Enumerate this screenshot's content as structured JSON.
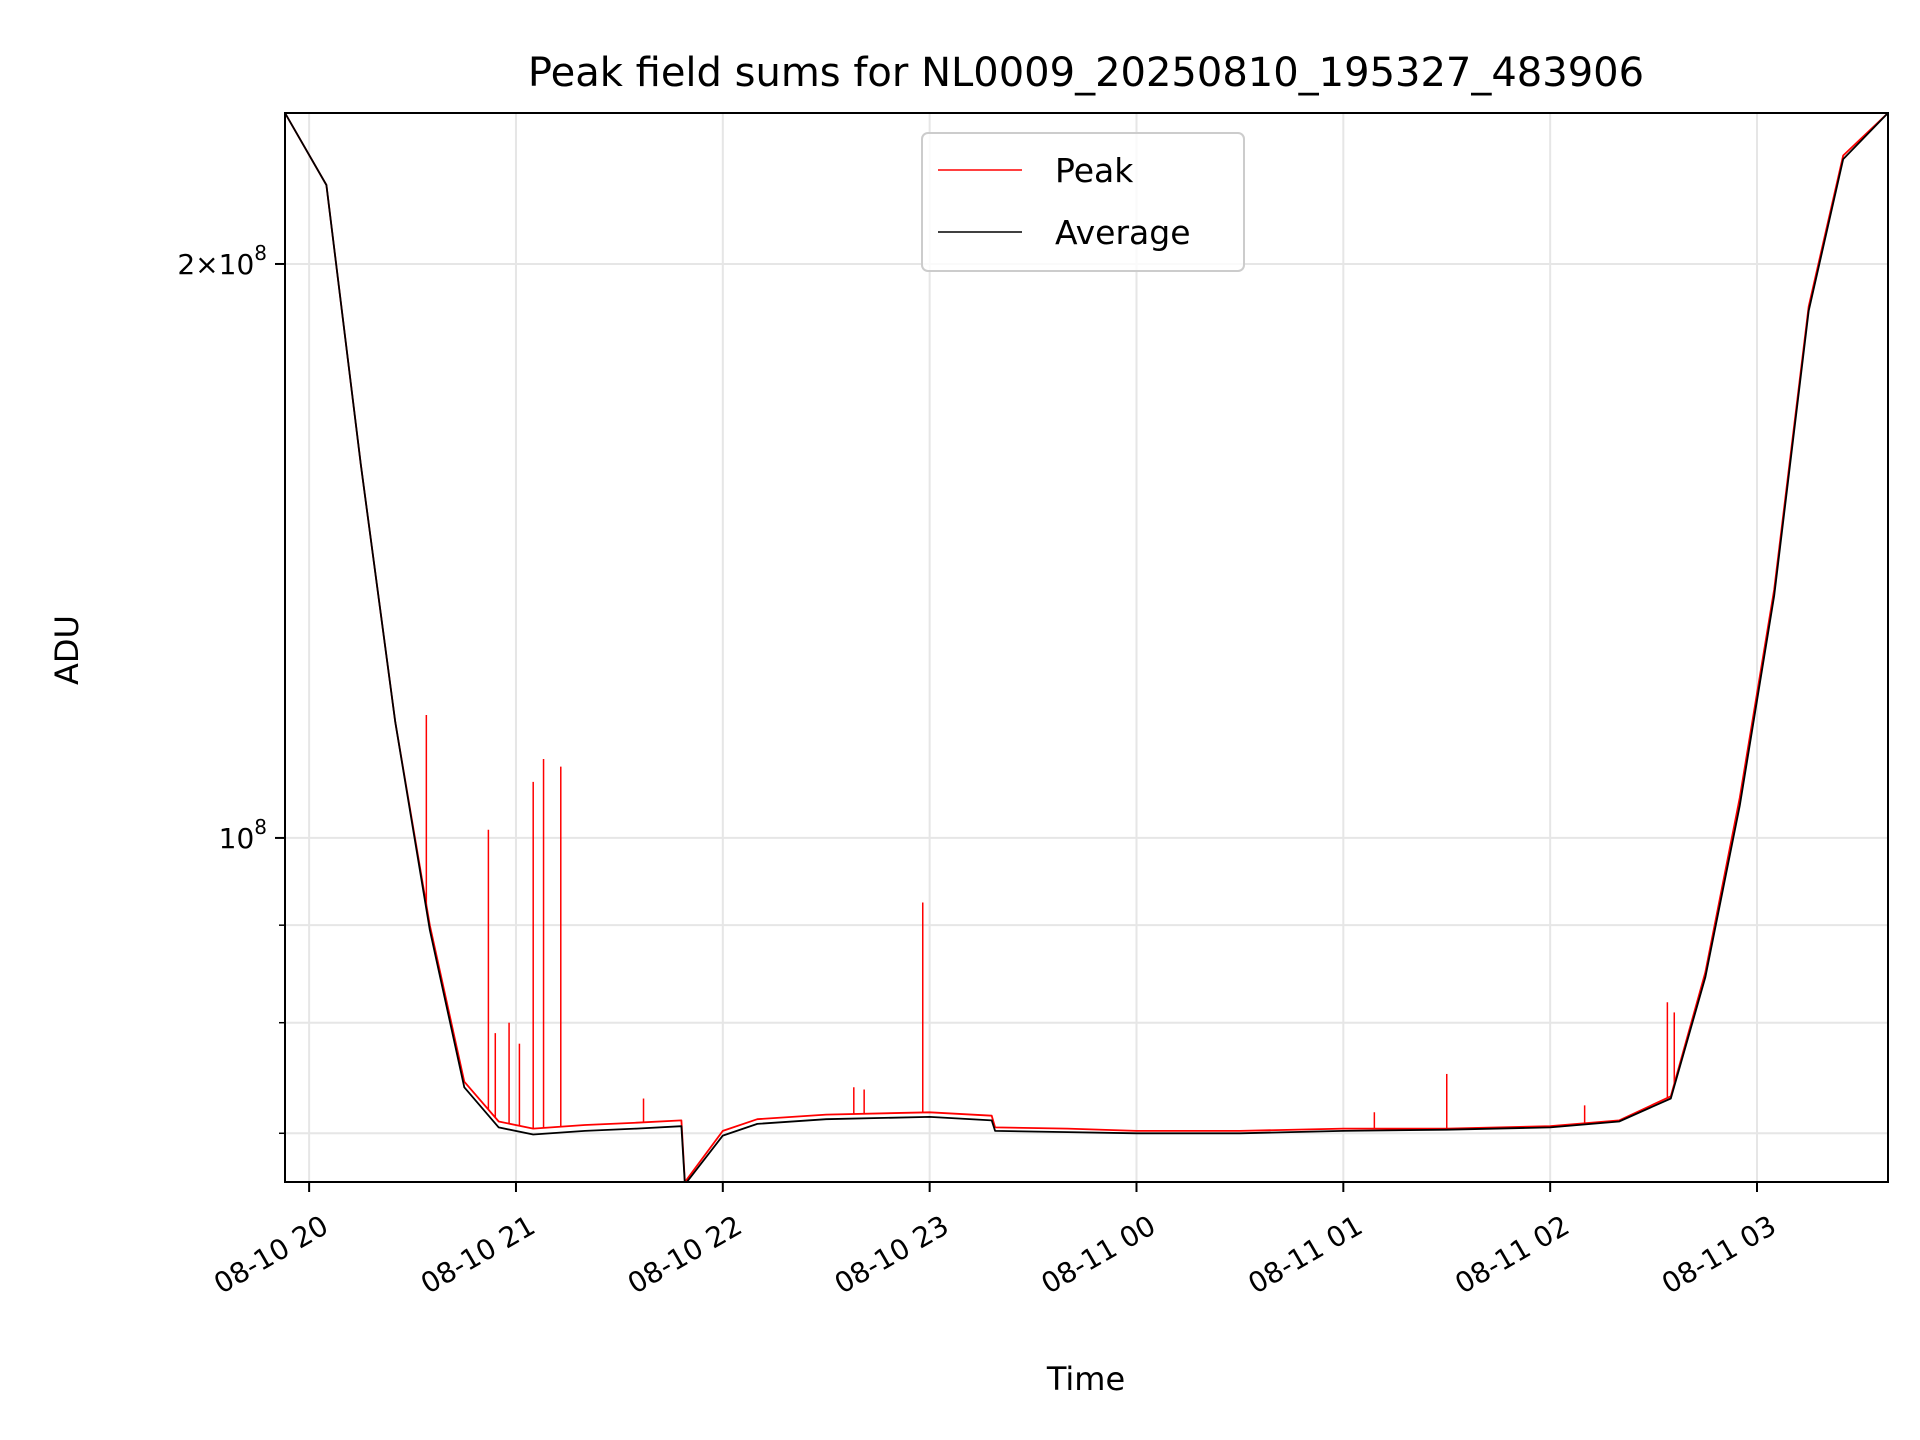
{
  "chart_data": {
    "type": "line",
    "title": "Peak field sums for NL0009_20250810_195327_483906",
    "xlabel": "Time",
    "ylabel": "ADU",
    "yscale": "log",
    "grid": true,
    "legend_position": "upper center",
    "x_ticks": [
      {
        "t": "2025-08-10T20:00",
        "label": "08-10 20"
      },
      {
        "t": "2025-08-10T21:00",
        "label": "08-10 21"
      },
      {
        "t": "2025-08-10T22:00",
        "label": "08-10 22"
      },
      {
        "t": "2025-08-10T23:00",
        "label": "08-10 23"
      },
      {
        "t": "2025-08-11T00:00",
        "label": "08-11 00"
      },
      {
        "t": "2025-08-11T01:00",
        "label": "08-11 01"
      },
      {
        "t": "2025-08-11T02:00",
        "label": "08-11 02"
      },
      {
        "t": "2025-08-11T03:00",
        "label": "08-11 03"
      }
    ],
    "y_ticks": [
      {
        "value": 100000000,
        "label_base": "10",
        "label_exp": "8",
        "label_prefix": ""
      },
      {
        "value": 200000000,
        "label_base": "10",
        "label_exp": "8",
        "label_prefix": "2×"
      }
    ],
    "xlim": [
      "2025-08-10T19:53",
      "2025-08-11T03:38"
    ],
    "ylim": [
      66000000,
      240000000
    ],
    "series": [
      {
        "name": "Peak",
        "color": "#ff0000",
        "time": [
          "2025-08-10T19:53",
          "2025-08-10T20:05",
          "2025-08-10T20:15",
          "2025-08-10T20:25",
          "2025-08-10T20:35",
          "2025-08-10T20:45",
          "2025-08-10T20:55",
          "2025-08-10T21:05",
          "2025-08-10T21:20",
          "2025-08-10T21:35",
          "2025-08-10T21:48",
          "2025-08-10T21:49",
          "2025-08-10T22:00",
          "2025-08-10T22:10",
          "2025-08-10T22:30",
          "2025-08-10T23:00",
          "2025-08-10T23:18",
          "2025-08-10T23:19",
          "2025-08-10T23:40",
          "2025-08-11T00:00",
          "2025-08-11T00:30",
          "2025-08-11T01:00",
          "2025-08-11T01:30",
          "2025-08-11T02:00",
          "2025-08-11T02:20",
          "2025-08-11T02:35",
          "2025-08-11T02:45",
          "2025-08-11T02:55",
          "2025-08-11T03:05",
          "2025-08-11T03:15",
          "2025-08-11T03:25",
          "2025-08-11T03:38"
        ],
        "values": [
          240000000,
          220000000,
          157000000,
          115000000,
          90000000,
          74500000,
          71000000,
          70400000,
          70700000,
          70900000,
          71100000,
          66000000,
          70200000,
          71200000,
          71600000,
          71800000,
          71500000,
          70500000,
          70400000,
          70200000,
          70200000,
          70400000,
          70400000,
          70600000,
          71100000,
          73200000,
          85000000,
          105000000,
          135000000,
          190000000,
          228000000,
          240000000
        ],
        "spikes": [
          {
            "t": "2025-08-10T20:34",
            "value": 116000000
          },
          {
            "t": "2025-08-10T20:52",
            "value": 101000000
          },
          {
            "t": "2025-08-10T20:54",
            "value": 79000000
          },
          {
            "t": "2025-08-10T20:58",
            "value": 80000000
          },
          {
            "t": "2025-08-10T21:01",
            "value": 78000000
          },
          {
            "t": "2025-08-10T21:05",
            "value": 107000000
          },
          {
            "t": "2025-08-10T21:08",
            "value": 110000000
          },
          {
            "t": "2025-08-10T21:13",
            "value": 109000000
          },
          {
            "t": "2025-08-10T21:37",
            "value": 73000000
          },
          {
            "t": "2025-08-10T22:38",
            "value": 74000000
          },
          {
            "t": "2025-08-10T22:41",
            "value": 73800000
          },
          {
            "t": "2025-08-10T22:58",
            "value": 92500000
          },
          {
            "t": "2025-08-11T01:09",
            "value": 71800000
          },
          {
            "t": "2025-08-11T01:30",
            "value": 75200000
          },
          {
            "t": "2025-08-11T02:10",
            "value": 72400000
          },
          {
            "t": "2025-08-11T02:34",
            "value": 82000000
          },
          {
            "t": "2025-08-11T02:36",
            "value": 81000000
          }
        ]
      },
      {
        "name": "Average",
        "color": "#000000",
        "time": [
          "2025-08-10T19:53",
          "2025-08-10T20:05",
          "2025-08-10T20:15",
          "2025-08-10T20:25",
          "2025-08-10T20:35",
          "2025-08-10T20:45",
          "2025-08-10T20:55",
          "2025-08-10T21:05",
          "2025-08-10T21:20",
          "2025-08-10T21:35",
          "2025-08-10T21:48",
          "2025-08-10T21:49",
          "2025-08-10T22:00",
          "2025-08-10T22:10",
          "2025-08-10T22:30",
          "2025-08-10T23:00",
          "2025-08-10T23:18",
          "2025-08-10T23:19",
          "2025-08-10T23:40",
          "2025-08-11T00:00",
          "2025-08-11T00:30",
          "2025-08-11T01:00",
          "2025-08-11T01:30",
          "2025-08-11T02:00",
          "2025-08-11T02:20",
          "2025-08-11T02:35",
          "2025-08-11T02:45",
          "2025-08-11T02:55",
          "2025-08-11T03:05",
          "2025-08-11T03:15",
          "2025-08-11T03:25",
          "2025-08-11T03:38"
        ],
        "values": [
          240000000,
          220000000,
          157000000,
          115000000,
          89500000,
          74000000,
          70500000,
          69900000,
          70200000,
          70400000,
          70600000,
          65800000,
          69800000,
          70800000,
          71200000,
          71400000,
          71100000,
          70200000,
          70100000,
          70000000,
          70000000,
          70200000,
          70300000,
          70500000,
          71000000,
          73000000,
          84500000,
          104000000,
          134000000,
          189000000,
          227000000,
          240000000
        ],
        "spikes": []
      }
    ]
  }
}
